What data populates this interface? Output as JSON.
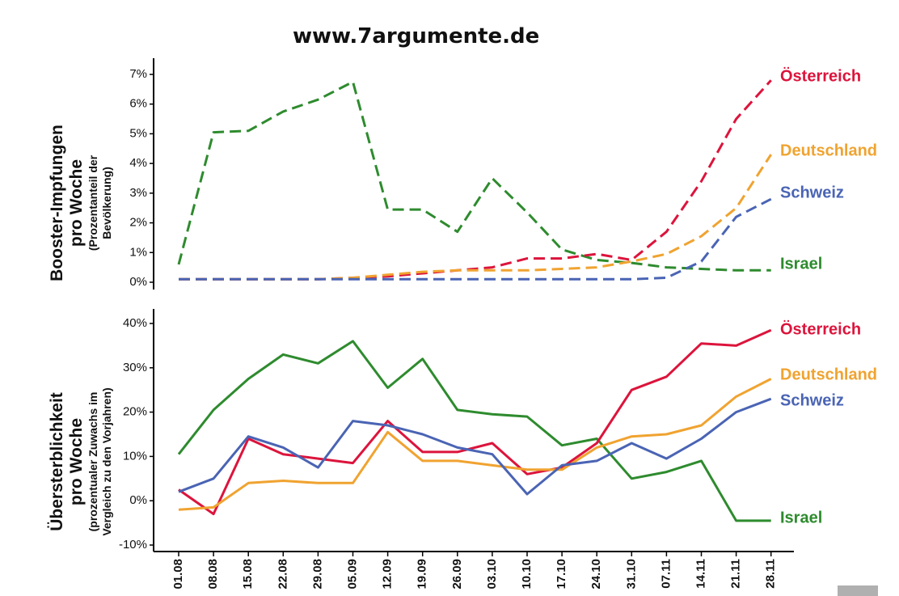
{
  "title": "www.7argumente.de",
  "x_categories": [
    "01.08",
    "08.08",
    "15.08",
    "22.08",
    "29.08",
    "05.09",
    "12.09",
    "19.09",
    "26.09",
    "03.10",
    "10.10",
    "17.10",
    "24.10",
    "31.10",
    "07.11",
    "14.11",
    "21.11",
    "28.11"
  ],
  "colors": {
    "oesterreich": "#dc143c",
    "deutschland": "#f0a330",
    "schweiz": "#4a64b4",
    "israel": "#2e8b2e",
    "axis": "#000000",
    "text": "#111111"
  },
  "chart_data": [
    {
      "type": "line",
      "style": "dashed",
      "title": "",
      "ylabel_main": [
        "Booster-Impfungen",
        "pro Woche"
      ],
      "ylabel_sub": [
        "(Prozentanteil der",
        "Bevölkerung)"
      ],
      "ylim": [
        0,
        7
      ],
      "yticks": [
        0,
        1,
        2,
        3,
        4,
        5,
        6,
        7
      ],
      "ytick_labels": [
        "0%",
        "1%",
        "2%",
        "3%",
        "4%",
        "5%",
        "6%",
        "7%"
      ],
      "series": [
        {
          "name": "Israel",
          "key": "israel",
          "values": [
            0.6,
            5.05,
            5.1,
            5.75,
            6.15,
            6.75,
            2.45,
            2.45,
            1.7,
            3.5,
            2.35,
            1.1,
            0.75,
            0.65,
            0.5,
            0.45,
            0.4,
            0.4
          ]
        },
        {
          "name": "Österreich",
          "key": "oesterreich",
          "values": [
            0.1,
            0.1,
            0.1,
            0.1,
            0.1,
            0.15,
            0.2,
            0.3,
            0.4,
            0.5,
            0.8,
            0.8,
            0.95,
            0.75,
            1.7,
            3.4,
            5.5,
            6.8
          ]
        },
        {
          "name": "Deutschland",
          "key": "deutschland",
          "values": [
            0.1,
            0.1,
            0.1,
            0.1,
            0.1,
            0.15,
            0.25,
            0.35,
            0.4,
            0.4,
            0.4,
            0.45,
            0.5,
            0.7,
            0.95,
            1.55,
            2.5,
            4.3
          ]
        },
        {
          "name": "Schweiz",
          "key": "schweiz",
          "values": [
            0.1,
            0.1,
            0.1,
            0.1,
            0.1,
            0.1,
            0.1,
            0.1,
            0.1,
            0.1,
            0.1,
            0.1,
            0.1,
            0.1,
            0.15,
            0.7,
            2.2,
            2.8
          ]
        }
      ]
    },
    {
      "type": "line",
      "style": "solid",
      "title": "",
      "ylabel_main": [
        "Übersterblichkeit",
        "pro Woche"
      ],
      "ylabel_sub": [
        "(prozentualer Zuwachs im",
        "Vergleich zu den Vorjahren)"
      ],
      "ylim": [
        -10,
        40
      ],
      "yticks": [
        -10,
        0,
        10,
        20,
        30,
        40
      ],
      "ytick_labels": [
        "-10%",
        "0%",
        "10%",
        "20%",
        "30%",
        "40%"
      ],
      "series": [
        {
          "name": "Israel",
          "key": "israel",
          "values": [
            10.5,
            20.5,
            27.5,
            33,
            31,
            36,
            25.5,
            32,
            20.5,
            19.5,
            19,
            12.5,
            14,
            5,
            6.5,
            9,
            -4.5,
            -4.5
          ]
        },
        {
          "name": "Österreich",
          "key": "oesterreich",
          "values": [
            2.5,
            -3,
            14,
            10.5,
            9.5,
            8.5,
            18,
            11,
            11,
            13,
            6,
            7.5,
            13,
            25,
            28,
            35.5,
            35,
            38.5
          ]
        },
        {
          "name": "Deutschland",
          "key": "deutschland",
          "values": [
            -2,
            -1.5,
            4,
            4.5,
            4,
            4,
            15.5,
            9,
            9,
            8,
            7,
            7,
            12,
            14.5,
            15,
            17,
            23.5,
            27.5
          ]
        },
        {
          "name": "Schweiz",
          "key": "schweiz",
          "values": [
            2,
            5,
            14.5,
            12,
            7.5,
            18,
            17,
            15,
            12,
            10.5,
            1.5,
            8,
            9,
            13,
            9.5,
            14,
            20,
            23
          ]
        }
      ]
    }
  ]
}
